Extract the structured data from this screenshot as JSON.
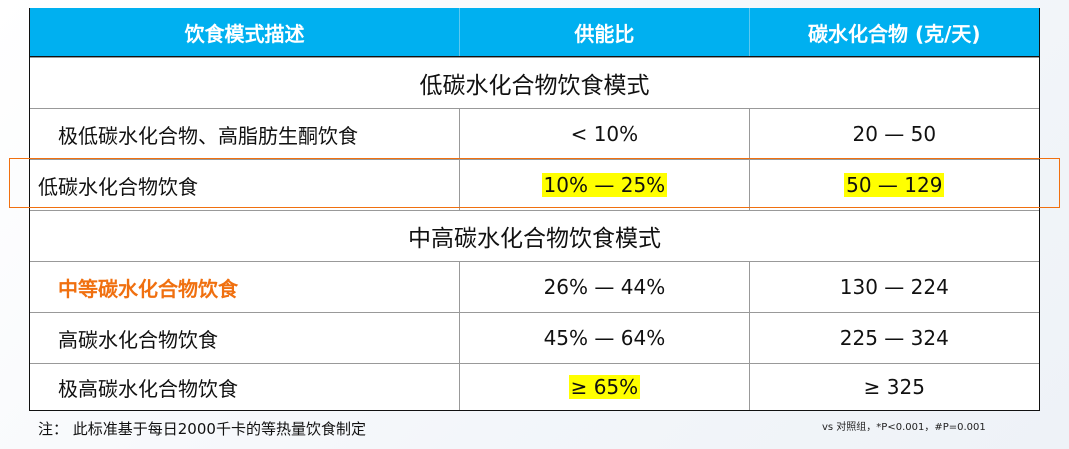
{
  "header": {
    "col1": "饮食模式描述",
    "col2": "供能比",
    "col3": "碳水化合物 (克/天)"
  },
  "sections": [
    {
      "title": "低碳水化合物饮食模式",
      "rows": [
        {
          "desc": "极低碳水化合物、高脂肪生酮饮食",
          "ratio": "< 10%",
          "grams": "20 — 50"
        },
        {
          "desc": "低碳水化合物饮食",
          "ratio": "10% — 25%",
          "grams": "50 — 129"
        }
      ]
    },
    {
      "title": "中高碳水化合物饮食模式",
      "rows": [
        {
          "desc": "中等碳水化合物饮食",
          "ratio": "26% — 44%",
          "grams": "130 — 224"
        },
        {
          "desc": "高碳水化合物饮食",
          "ratio": "45% — 64%",
          "grams": "225 — 324"
        },
        {
          "desc": "极高碳水化合物饮食",
          "ratio": "≥ 65%",
          "grams": "≥ 325"
        }
      ]
    }
  ],
  "note": "注：  此标准基于每日2000千卡的等热量饮食制定",
  "footnote": "vs 对照组，*P<0.001，#P=0.001",
  "colors": {
    "header": "#00b0f0",
    "highlight": "#ffff00",
    "accent": "#f07010"
  }
}
